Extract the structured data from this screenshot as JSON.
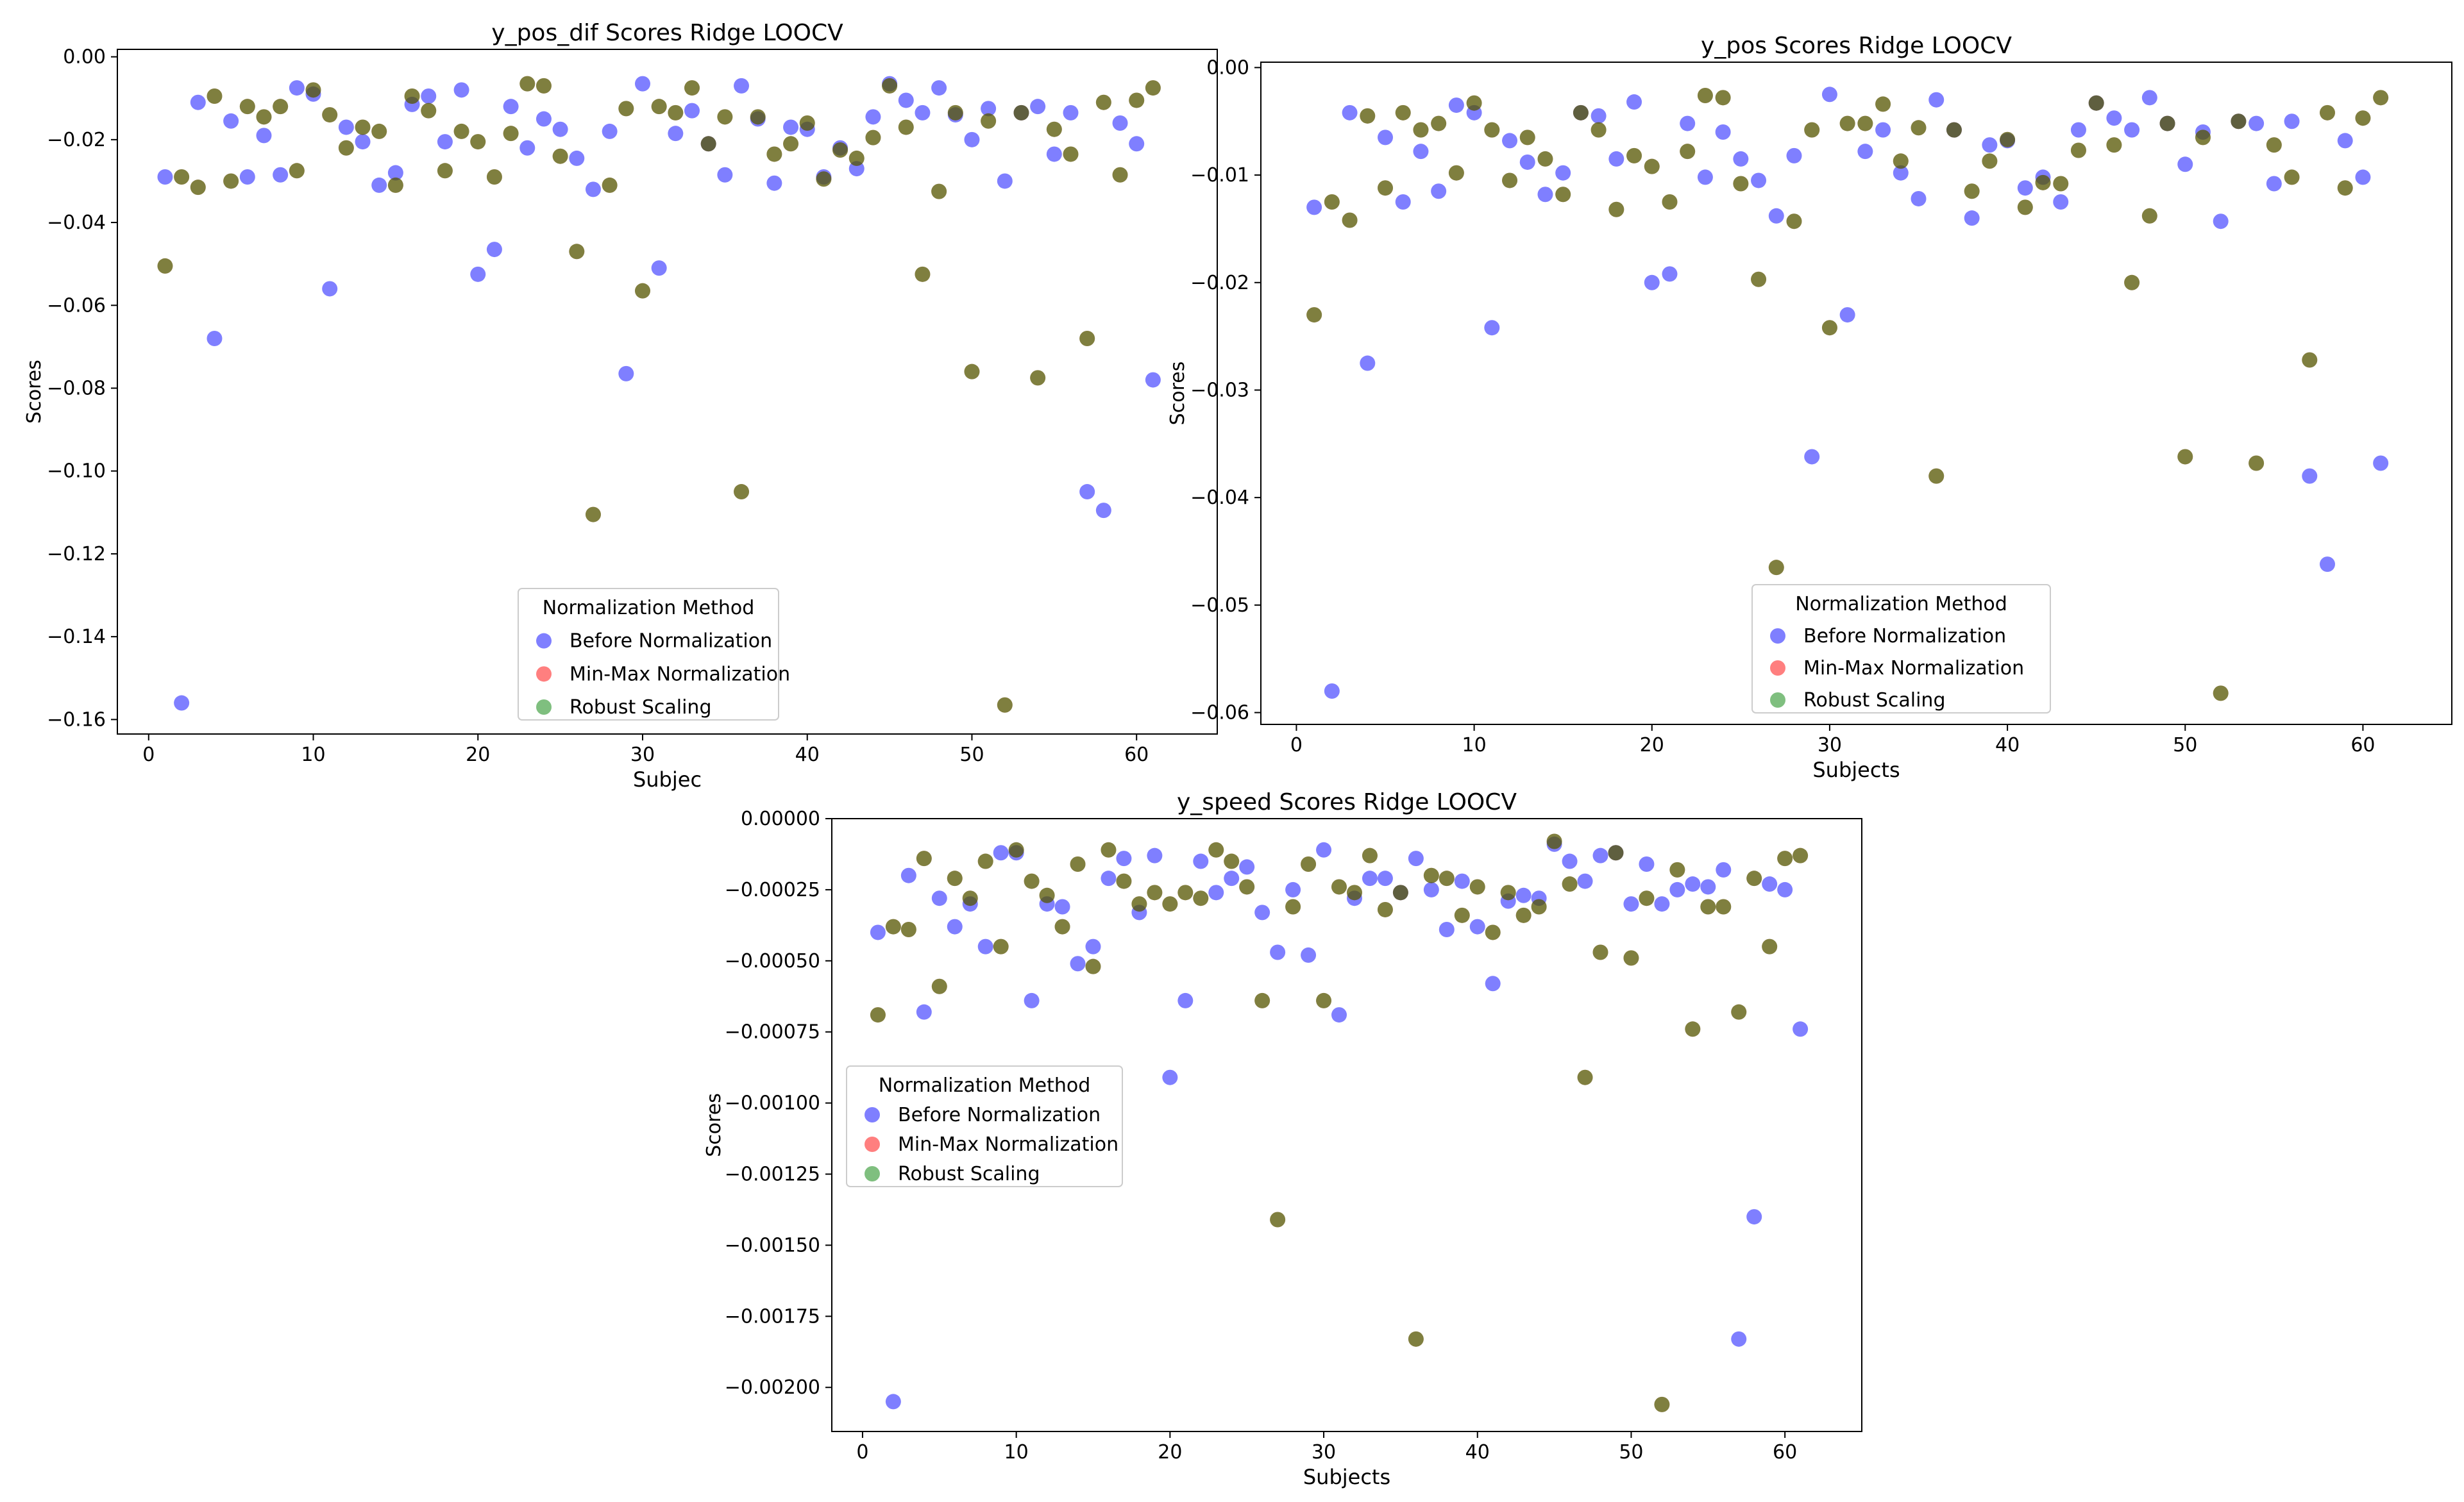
{
  "chart_data": [
    {
      "type": "scatter",
      "title": "y_pos_dif Scores Ridge LOOCV",
      "xlabel": "Subjec",
      "ylabel": "Scores",
      "xlim": [
        -1.9,
        64.9
      ],
      "ylim": [
        -0.1635,
        0.0018
      ],
      "xticks": [
        0,
        10,
        20,
        30,
        40,
        50,
        60
      ],
      "xtick_labels": [
        "0",
        "10",
        "20",
        "30",
        "40",
        "50",
        "60"
      ],
      "yticks": [
        0.0,
        -0.02,
        -0.04,
        -0.06,
        -0.08,
        -0.1,
        -0.12,
        -0.14,
        -0.16
      ],
      "ytick_labels": [
        "0.00",
        "−0.02",
        "−0.04",
        "−0.06",
        "−0.08",
        "−0.10",
        "−0.12",
        "−0.14",
        "−0.16"
      ],
      "grid": false,
      "legend": {
        "title": "Normalization Method",
        "placement": "lower-center"
      },
      "x": [
        1,
        2,
        3,
        4,
        5,
        6,
        7,
        8,
        9,
        10,
        11,
        12,
        13,
        14,
        15,
        16,
        17,
        18,
        19,
        20,
        21,
        22,
        23,
        24,
        25,
        26,
        27,
        28,
        29,
        30,
        31,
        32,
        33,
        34,
        35,
        36,
        37,
        38,
        39,
        40,
        41,
        42,
        43,
        44,
        45,
        46,
        47,
        48,
        49,
        50,
        51,
        52,
        53,
        54,
        55,
        56,
        57,
        58,
        59,
        60,
        61
      ],
      "series": [
        {
          "name": "Before Normalization",
          "color": "#0000ff",
          "values": [
            -0.029,
            -0.156,
            -0.011,
            -0.068,
            -0.0155,
            -0.029,
            -0.019,
            -0.0285,
            -0.0075,
            -0.009,
            -0.056,
            -0.017,
            -0.0205,
            -0.031,
            -0.028,
            -0.0115,
            -0.0095,
            -0.0205,
            -0.008,
            -0.0525,
            -0.0465,
            -0.012,
            -0.022,
            -0.015,
            -0.0175,
            -0.0245,
            -0.032,
            -0.018,
            -0.0765,
            -0.0065,
            -0.051,
            -0.0185,
            -0.013,
            -0.021,
            -0.0285,
            -0.007,
            -0.015,
            -0.0305,
            -0.017,
            -0.0175,
            -0.029,
            -0.022,
            -0.027,
            -0.0145,
            -0.0065,
            -0.0105,
            -0.0135,
            -0.0075,
            -0.014,
            -0.02,
            -0.0125,
            -0.03,
            -0.0135,
            -0.012,
            -0.0235,
            -0.0135,
            -0.105,
            -0.1095,
            -0.016,
            -0.021,
            -0.078
          ]
        },
        {
          "name": "Min-Max Normalization",
          "color": "#ff0000",
          "values": [
            -0.0505,
            -0.029,
            -0.0315,
            -0.0095,
            -0.03,
            -0.012,
            -0.0145,
            -0.012,
            -0.0275,
            -0.008,
            -0.014,
            -0.022,
            -0.017,
            -0.018,
            -0.031,
            -0.0095,
            -0.013,
            -0.0275,
            -0.018,
            -0.0205,
            -0.029,
            -0.0185,
            -0.0065,
            -0.007,
            -0.024,
            -0.047,
            -0.1105,
            -0.031,
            -0.0125,
            -0.0565,
            -0.012,
            -0.0135,
            -0.0075,
            -0.021,
            -0.0145,
            -0.105,
            -0.0145,
            -0.0235,
            -0.021,
            -0.016,
            -0.0295,
            -0.0225,
            -0.0245,
            -0.0195,
            -0.007,
            -0.017,
            -0.0525,
            -0.0325,
            -0.0135,
            -0.076,
            -0.0155,
            -0.1565,
            -0.0135,
            -0.0775,
            -0.0175,
            -0.0235,
            -0.068,
            -0.011,
            -0.0285,
            -0.0105,
            -0.0075
          ]
        },
        {
          "name": "Robust Scaling",
          "color": "#008000",
          "values": [
            -0.0505,
            -0.029,
            -0.0315,
            -0.0095,
            -0.03,
            -0.012,
            -0.0145,
            -0.012,
            -0.0275,
            -0.008,
            -0.014,
            -0.022,
            -0.017,
            -0.018,
            -0.031,
            -0.0095,
            -0.013,
            -0.0275,
            -0.018,
            -0.0205,
            -0.029,
            -0.0185,
            -0.0065,
            -0.007,
            -0.024,
            -0.047,
            -0.1105,
            -0.031,
            -0.0125,
            -0.0565,
            -0.012,
            -0.0135,
            -0.0075,
            -0.021,
            -0.0145,
            -0.105,
            -0.0145,
            -0.0235,
            -0.021,
            -0.016,
            -0.0295,
            -0.0225,
            -0.0245,
            -0.0195,
            -0.007,
            -0.017,
            -0.0525,
            -0.0325,
            -0.0135,
            -0.076,
            -0.0155,
            -0.1565,
            -0.0135,
            -0.0775,
            -0.0175,
            -0.0235,
            -0.068,
            -0.011,
            -0.0285,
            -0.0105,
            -0.0075
          ]
        }
      ]
    },
    {
      "type": "scatter",
      "title": "y_pos Scores Ridge LOOCV",
      "xlabel": "Subjects",
      "ylabel": "Scores",
      "xlim": [
        -2.0,
        65.0
      ],
      "ylim": [
        -0.0611,
        0.0005
      ],
      "xticks": [
        0,
        10,
        20,
        30,
        40,
        50,
        60
      ],
      "xtick_labels": [
        "0",
        "10",
        "20",
        "30",
        "40",
        "50",
        "60"
      ],
      "yticks": [
        0.0,
        -0.01,
        -0.02,
        -0.03,
        -0.04,
        -0.05,
        -0.06
      ],
      "ytick_labels": [
        "0.00",
        "−0.01",
        "−0.02",
        "−0.03",
        "−0.04",
        "−0.05",
        "−0.06"
      ],
      "grid": false,
      "legend": {
        "title": "Normalization Method",
        "placement": "lower-center"
      },
      "x": [
        1,
        2,
        3,
        4,
        5,
        6,
        7,
        8,
        9,
        10,
        11,
        12,
        13,
        14,
        15,
        16,
        17,
        18,
        19,
        20,
        21,
        22,
        23,
        24,
        25,
        26,
        27,
        28,
        29,
        30,
        31,
        32,
        33,
        34,
        35,
        36,
        37,
        38,
        39,
        40,
        41,
        42,
        43,
        44,
        45,
        46,
        47,
        48,
        49,
        50,
        51,
        52,
        53,
        54,
        55,
        56,
        57,
        58,
        59,
        60,
        61
      ],
      "series": [
        {
          "name": "Before Normalization",
          "color": "#0000ff",
          "values": [
            -0.013,
            -0.058,
            -0.0042,
            -0.0275,
            -0.0065,
            -0.0125,
            -0.0078,
            -0.0115,
            -0.0035,
            -0.0042,
            -0.0242,
            -0.0068,
            -0.0088,
            -0.0118,
            -0.0098,
            -0.0042,
            -0.0045,
            -0.0085,
            -0.0032,
            -0.02,
            -0.0192,
            -0.0052,
            -0.0102,
            -0.006,
            -0.0085,
            -0.0105,
            -0.0138,
            -0.0082,
            -0.0362,
            -0.0025,
            -0.023,
            -0.0078,
            -0.0058,
            -0.0098,
            -0.0122,
            -0.003,
            -0.0058,
            -0.014,
            -0.0072,
            -0.0068,
            -0.0112,
            -0.0102,
            -0.0125,
            -0.0058,
            -0.0033,
            -0.0047,
            -0.0058,
            -0.0028,
            -0.0052,
            -0.009,
            -0.006,
            -0.0143,
            -0.005,
            -0.0052,
            -0.0108,
            -0.005,
            -0.038,
            -0.0462,
            -0.0068,
            -0.0102,
            -0.0368
          ]
        },
        {
          "name": "Min-Max Normalization",
          "color": "#ff0000",
          "values": [
            -0.023,
            -0.0125,
            -0.0142,
            -0.0045,
            -0.0112,
            -0.0042,
            -0.0058,
            -0.0052,
            -0.0098,
            -0.0033,
            -0.0058,
            -0.0105,
            -0.0065,
            -0.0085,
            -0.0118,
            -0.0042,
            -0.0058,
            -0.0132,
            -0.0082,
            -0.0092,
            -0.0125,
            -0.0078,
            -0.0026,
            -0.0028,
            -0.0108,
            -0.0197,
            -0.0465,
            -0.0143,
            -0.0058,
            -0.0242,
            -0.0052,
            -0.0052,
            -0.0034,
            -0.0087,
            -0.0056,
            -0.038,
            -0.0058,
            -0.0115,
            -0.0087,
            -0.0067,
            -0.013,
            -0.0107,
            -0.0108,
            -0.0077,
            -0.0033,
            -0.0072,
            -0.02,
            -0.0138,
            -0.0052,
            -0.0362,
            -0.0065,
            -0.0582,
            -0.005,
            -0.0368,
            -0.0072,
            -0.0102,
            -0.0272,
            -0.0042,
            -0.0112,
            -0.0047,
            -0.0028
          ]
        },
        {
          "name": "Robust Scaling",
          "color": "#008000",
          "values": [
            -0.023,
            -0.0125,
            -0.0142,
            -0.0045,
            -0.0112,
            -0.0042,
            -0.0058,
            -0.0052,
            -0.0098,
            -0.0033,
            -0.0058,
            -0.0105,
            -0.0065,
            -0.0085,
            -0.0118,
            -0.0042,
            -0.0058,
            -0.0132,
            -0.0082,
            -0.0092,
            -0.0125,
            -0.0078,
            -0.0026,
            -0.0028,
            -0.0108,
            -0.0197,
            -0.0465,
            -0.0143,
            -0.0058,
            -0.0242,
            -0.0052,
            -0.0052,
            -0.0034,
            -0.0087,
            -0.0056,
            -0.038,
            -0.0058,
            -0.0115,
            -0.0087,
            -0.0067,
            -0.013,
            -0.0107,
            -0.0108,
            -0.0077,
            -0.0033,
            -0.0072,
            -0.02,
            -0.0138,
            -0.0052,
            -0.0362,
            -0.0065,
            -0.0582,
            -0.005,
            -0.0368,
            -0.0072,
            -0.0102,
            -0.0272,
            -0.0042,
            -0.0112,
            -0.0047,
            -0.0028
          ]
        }
      ]
    },
    {
      "type": "scatter",
      "title": "y_speed Scores Ridge LOOCV",
      "xlabel": "Subjects",
      "ylabel": "Scores",
      "xlim": [
        -2.0,
        65.0
      ],
      "ylim": [
        -0.002155,
        0.0
      ],
      "xticks": [
        0,
        10,
        20,
        30,
        40,
        50,
        60
      ],
      "xtick_labels": [
        "0",
        "10",
        "20",
        "30",
        "40",
        "50",
        "60"
      ],
      "yticks": [
        0.0,
        -0.00025,
        -0.0005,
        -0.00075,
        -0.001,
        -0.00125,
        -0.0015,
        -0.00175,
        -0.002
      ],
      "ytick_labels": [
        "0.00000",
        "−0.00025",
        "−0.00050",
        "−0.00075",
        "−0.00100",
        "−0.00125",
        "−0.00150",
        "−0.00175",
        "−0.00200"
      ],
      "grid": false,
      "legend": {
        "title": "Normalization Method",
        "placement": "center-left"
      },
      "x": [
        1,
        2,
        3,
        4,
        5,
        6,
        7,
        8,
        9,
        10,
        11,
        12,
        13,
        14,
        15,
        16,
        17,
        18,
        19,
        20,
        21,
        22,
        23,
        24,
        25,
        26,
        27,
        28,
        29,
        30,
        31,
        32,
        33,
        34,
        35,
        36,
        37,
        38,
        39,
        40,
        41,
        42,
        43,
        44,
        45,
        46,
        47,
        48,
        49,
        50,
        51,
        52,
        53,
        54,
        55,
        56,
        57,
        58,
        59,
        60,
        61
      ],
      "series": [
        {
          "name": "Before Normalization",
          "color": "#0000ff",
          "values": [
            -0.0004,
            -0.00205,
            -0.0002,
            -0.00068,
            -0.00028,
            -0.00038,
            -0.0003,
            -0.00045,
            -0.00012,
            -0.00012,
            -0.00064,
            -0.0003,
            -0.00031,
            -0.00051,
            -0.00045,
            -0.00021,
            -0.00014,
            -0.00033,
            -0.00013,
            -0.00091,
            -0.00064,
            -0.00015,
            -0.00026,
            -0.00021,
            -0.00017,
            -0.00033,
            -0.00047,
            -0.00025,
            -0.00048,
            -0.00011,
            -0.00069,
            -0.00028,
            -0.00021,
            -0.00021,
            -0.00026,
            -0.00014,
            -0.00025,
            -0.00039,
            -0.00022,
            -0.00038,
            -0.00058,
            -0.00029,
            -0.00027,
            -0.00028,
            -9e-05,
            -0.00015,
            -0.00022,
            -0.00013,
            -0.00012,
            -0.0003,
            -0.00016,
            -0.0003,
            -0.00025,
            -0.00023,
            -0.00024,
            -0.00018,
            -0.00183,
            -0.0014,
            -0.00023,
            -0.00025,
            -0.00074
          ]
        },
        {
          "name": "Min-Max Normalization",
          "color": "#ff0000",
          "values": [
            -0.00069,
            -0.00038,
            -0.00039,
            -0.00014,
            -0.00059,
            -0.00021,
            -0.00028,
            -0.00015,
            -0.00045,
            -0.00011,
            -0.00022,
            -0.00027,
            -0.00038,
            -0.00016,
            -0.00052,
            -0.00011,
            -0.00022,
            -0.0003,
            -0.00026,
            -0.0003,
            -0.00026,
            -0.00028,
            -0.00011,
            -0.00015,
            -0.00024,
            -0.00064,
            -0.00141,
            -0.00031,
            -0.00016,
            -0.00064,
            -0.00024,
            -0.00026,
            -0.00013,
            -0.00032,
            -0.00026,
            -0.00183,
            -0.0002,
            -0.00021,
            -0.00034,
            -0.00024,
            -0.0004,
            -0.00026,
            -0.00034,
            -0.00031,
            -8e-05,
            -0.00023,
            -0.00091,
            -0.00047,
            -0.00012,
            -0.00049,
            -0.00028,
            -0.00206,
            -0.00018,
            -0.00074,
            -0.00031,
            -0.00031,
            -0.00068,
            -0.00021,
            -0.00045,
            -0.00014,
            -0.00013
          ]
        },
        {
          "name": "Robust Scaling",
          "color": "#008000",
          "values": [
            -0.00069,
            -0.00038,
            -0.00039,
            -0.00014,
            -0.00059,
            -0.00021,
            -0.00028,
            -0.00015,
            -0.00045,
            -0.00011,
            -0.00022,
            -0.00027,
            -0.00038,
            -0.00016,
            -0.00052,
            -0.00011,
            -0.00022,
            -0.0003,
            -0.00026,
            -0.0003,
            -0.00026,
            -0.00028,
            -0.00011,
            -0.00015,
            -0.00024,
            -0.00064,
            -0.00141,
            -0.00031,
            -0.00016,
            -0.00064,
            -0.00024,
            -0.00026,
            -0.00013,
            -0.00032,
            -0.00026,
            -0.00183,
            -0.0002,
            -0.00021,
            -0.00034,
            -0.00024,
            -0.0004,
            -0.00026,
            -0.00034,
            -0.00031,
            -8e-05,
            -0.00023,
            -0.00091,
            -0.00047,
            -0.00012,
            -0.00049,
            -0.00028,
            -0.00206,
            -0.00018,
            -0.00074,
            -0.00031,
            -0.00031,
            -0.00068,
            -0.00021,
            -0.00045,
            -0.00014,
            -0.00013
          ]
        }
      ]
    }
  ]
}
